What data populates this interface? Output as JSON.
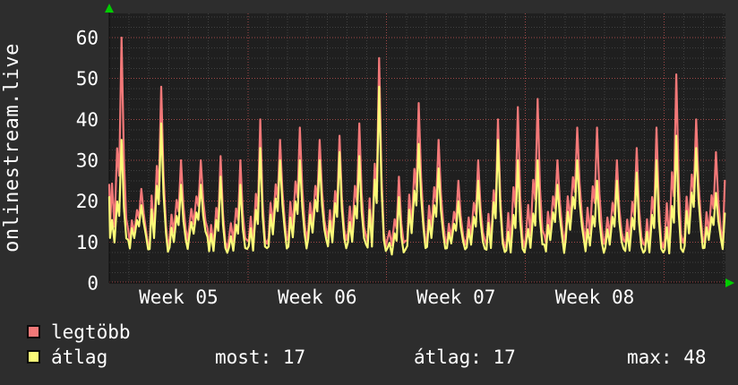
{
  "window": {
    "bg": "#2d2d2d"
  },
  "chart": {
    "vertical_title": "onlinestream.live",
    "plot_bg": "#1f1f1f",
    "text_color": "#ffffff",
    "grid_minor_color": "#414141",
    "grid_major_color": "#a04848",
    "axis_color": "#0a0a0a",
    "arrow_color": "#00cc00"
  },
  "chart_data": {
    "type": "line",
    "title": "onlinestream.live",
    "x_unit": "days",
    "days_span": 31.1,
    "ylim": [
      0,
      66
    ],
    "yticks": [
      0,
      10,
      20,
      30,
      40,
      50,
      60
    ],
    "xticks": [
      {
        "label": "Week 05",
        "day_center": 3.5
      },
      {
        "label": "Week 06",
        "day_center": 10.5
      },
      {
        "label": "Week 07",
        "day_center": 17.5
      },
      {
        "label": "Week 08",
        "day_center": 24.5
      }
    ],
    "week_gridline_days": [
      7,
      14,
      21,
      28
    ],
    "grid": {
      "on": true,
      "minor_y_step": 2.5,
      "major_y_step": 10,
      "minor_x_step_days": 1
    },
    "legend_position": "bottom-left",
    "series": [
      {
        "name": "legtöbb",
        "color": "#f27878",
        "daily_peaks": [
          60,
          23,
          48,
          30,
          30,
          31,
          30,
          40,
          35,
          38,
          35,
          36,
          39,
          55,
          26,
          44,
          35,
          25,
          30,
          40,
          43,
          45,
          30,
          38,
          38,
          30,
          33,
          38,
          51,
          40,
          32
        ],
        "daily_lows": [
          12,
          9,
          8,
          10,
          13,
          8,
          10,
          9,
          10,
          10,
          12,
          10,
          11,
          8,
          10,
          9,
          10,
          9,
          10,
          8,
          8,
          11,
          9,
          12,
          9,
          10,
          9,
          8,
          9,
          10,
          9
        ],
        "start_value": 24,
        "end_value": 25
      },
      {
        "name": "átlag",
        "color": "#fafa78",
        "daily_peaks": [
          35,
          19,
          39,
          24,
          24,
          26,
          24,
          33,
          30,
          30,
          30,
          32,
          31,
          48,
          21,
          34,
          28,
          20,
          25,
          35,
          30,
          30,
          24,
          30,
          25,
          25,
          27,
          30,
          36,
          33,
          22
        ],
        "daily_lows": [
          10,
          8,
          7,
          8,
          11,
          7,
          8,
          8,
          8,
          8,
          10,
          8,
          9,
          7,
          8,
          8,
          8,
          8,
          8,
          7,
          7,
          9,
          7,
          10,
          7,
          8,
          7,
          7,
          7,
          8,
          8
        ],
        "start_value": 21,
        "end_value": 17
      }
    ],
    "stats": {
      "most": 17,
      "atlag": 17,
      "max": 48
    }
  },
  "legend": {
    "series1_label": "legtöbb",
    "series2_label": "átlag",
    "most_text": "most: 17",
    "atlag_text": "átlag: 17",
    "max_text": "max: 48"
  }
}
